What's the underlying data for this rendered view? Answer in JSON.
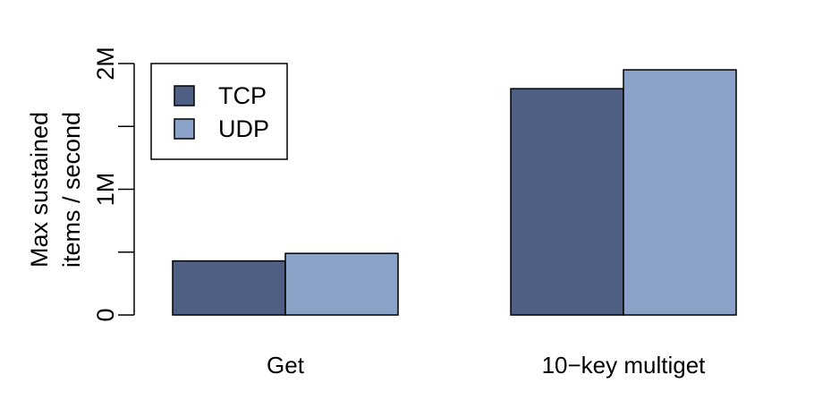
{
  "chart_data": {
    "type": "bar",
    "categories": [
      "Get",
      "10−key multiget"
    ],
    "series": [
      {
        "name": "TCP",
        "color": "#4e5f83",
        "values": [
          430000,
          1800000
        ]
      },
      {
        "name": "UDP",
        "color": "#8aa2c8",
        "values": [
          490000,
          1950000
        ]
      }
    ],
    "ylabel": [
      "Max sustained",
      "items / second"
    ],
    "yticks": [
      {
        "value": 0,
        "label": "0"
      },
      {
        "value": 500000,
        "label": ""
      },
      {
        "value": 1000000,
        "label": "1M"
      },
      {
        "value": 1500000,
        "label": ""
      },
      {
        "value": 2000000,
        "label": "2M"
      }
    ],
    "ylim": [
      0,
      2000000
    ],
    "legend_position": "top-left",
    "grid": false
  }
}
